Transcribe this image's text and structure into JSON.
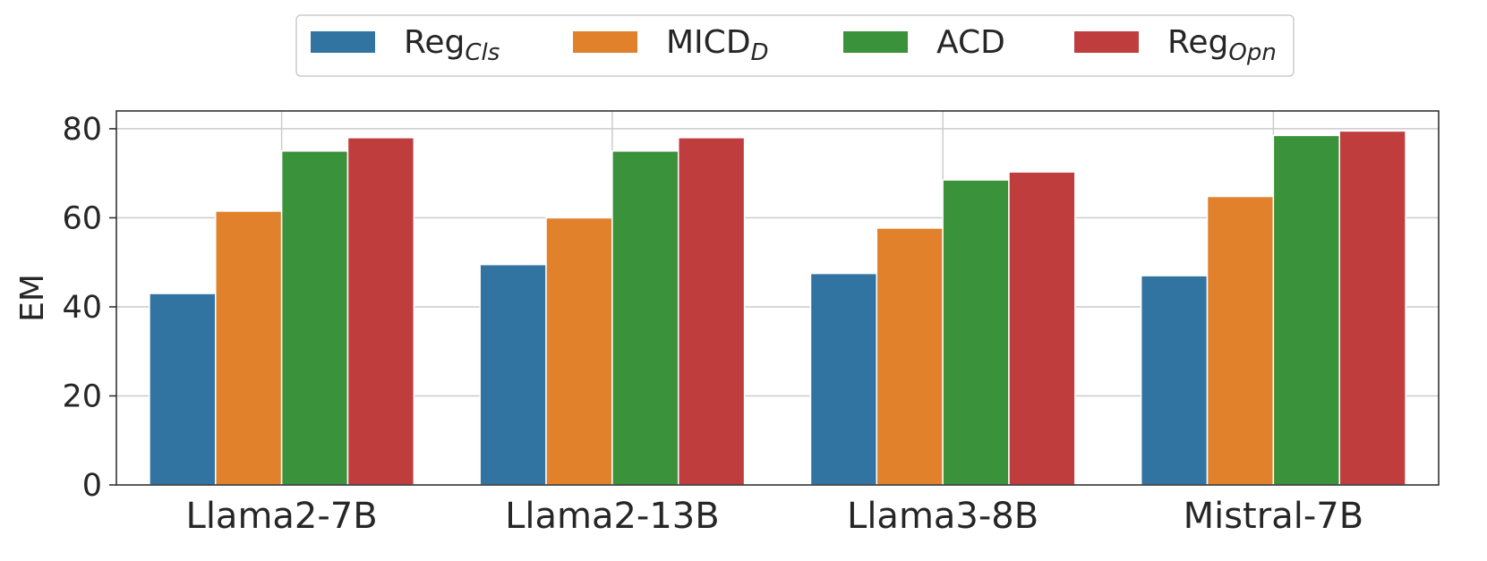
{
  "chart_data": {
    "type": "bar",
    "title": "",
    "xlabel": "",
    "ylabel": "EM",
    "ylim": [
      0,
      84
    ],
    "yticks": [
      0,
      20,
      40,
      60,
      80
    ],
    "grid": true,
    "legend_position": "top-center",
    "categories": [
      "Llama2-7B",
      "Llama2-13B",
      "Llama3-8B",
      "Mistral-7B"
    ],
    "series": [
      {
        "name": "Reg",
        "subscript": "Cls",
        "color": "#3274a1",
        "values": [
          43.0,
          49.5,
          47.5,
          47.0
        ]
      },
      {
        "name": "MICD",
        "subscript": "D",
        "color": "#e1812c",
        "values": [
          61.5,
          60.0,
          57.7,
          64.8
        ]
      },
      {
        "name": "ACD",
        "subscript": "",
        "color": "#3a923a",
        "values": [
          75.0,
          75.0,
          68.5,
          78.5
        ]
      },
      {
        "name": "Reg",
        "subscript": "Opn",
        "color": "#c03d3e",
        "values": [
          78.0,
          78.0,
          70.3,
          79.5
        ]
      }
    ]
  }
}
